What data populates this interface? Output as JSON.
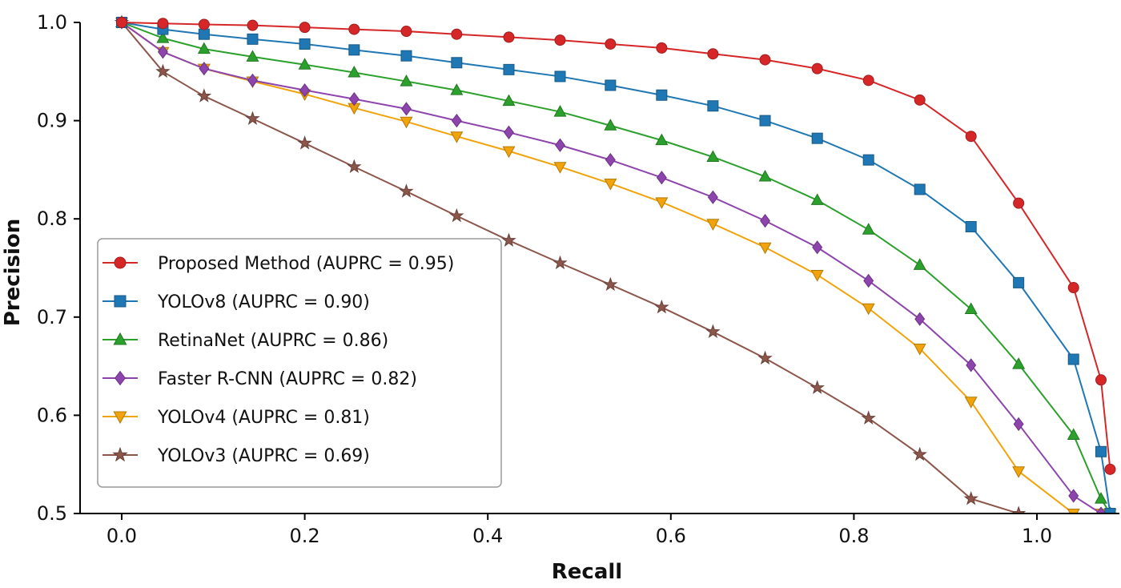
{
  "chart_data": {
    "type": "line",
    "title": "",
    "xlabel": "Recall",
    "ylabel": "Precision",
    "xlim": [
      -0.1,
      1.085
    ],
    "ylim": [
      0.5,
      1.0
    ],
    "xticks": [
      "0.0",
      "0.2",
      "0.4",
      "0.6",
      "0.8",
      "1.0"
    ],
    "xtick_values": [
      0.0,
      0.2,
      0.4,
      0.6,
      0.8,
      1.0
    ],
    "yticks": [
      "0.5",
      "0.6",
      "0.7",
      "0.8",
      "0.9",
      "1.0"
    ],
    "ytick_values": [
      0.5,
      0.6,
      0.7,
      0.8,
      0.9,
      1.0
    ],
    "grid": false,
    "legend_position": "lower-left",
    "series": [
      {
        "name": "Proposed Method (AUPRC = 0.95)",
        "color": "#d62728",
        "marker": "circle",
        "x": [
          0.0,
          0.045,
          0.09,
          0.143,
          0.2,
          0.254,
          0.311,
          0.366,
          0.423,
          0.479,
          0.534,
          0.59,
          0.646,
          0.703,
          0.76,
          0.816,
          0.872,
          0.928,
          0.98,
          1.04,
          1.07,
          1.08
        ],
        "y": [
          1.0,
          0.999,
          0.998,
          0.997,
          0.995,
          0.993,
          0.991,
          0.988,
          0.985,
          0.982,
          0.978,
          0.974,
          0.968,
          0.962,
          0.953,
          0.941,
          0.921,
          0.884,
          0.816,
          0.73,
          0.636,
          0.545
        ]
      },
      {
        "name": "YOLOv8 (AUPRC = 0.90)",
        "color": "#1f77b4",
        "marker": "square",
        "x": [
          0.0,
          0.045,
          0.09,
          0.143,
          0.2,
          0.254,
          0.311,
          0.366,
          0.423,
          0.479,
          0.534,
          0.59,
          0.646,
          0.703,
          0.76,
          0.816,
          0.872,
          0.928,
          0.98,
          1.04,
          1.07,
          1.08
        ],
        "y": [
          1.0,
          0.993,
          0.988,
          0.983,
          0.978,
          0.972,
          0.966,
          0.959,
          0.952,
          0.945,
          0.936,
          0.926,
          0.915,
          0.9,
          0.882,
          0.86,
          0.83,
          0.792,
          0.735,
          0.657,
          0.563,
          0.5
        ]
      },
      {
        "name": "RetinaNet (AUPRC = 0.86)",
        "color": "#2ca02c",
        "marker": "triangle-up",
        "x": [
          0.0,
          0.045,
          0.09,
          0.143,
          0.2,
          0.254,
          0.311,
          0.366,
          0.423,
          0.479,
          0.534,
          0.59,
          0.646,
          0.703,
          0.76,
          0.816,
          0.872,
          0.928,
          0.98,
          1.04,
          1.07,
          1.08
        ],
        "y": [
          1.0,
          0.984,
          0.973,
          0.965,
          0.957,
          0.949,
          0.94,
          0.931,
          0.92,
          0.909,
          0.895,
          0.88,
          0.863,
          0.843,
          0.819,
          0.789,
          0.753,
          0.708,
          0.652,
          0.58,
          0.515,
          0.5
        ]
      },
      {
        "name": "Faster R-CNN (AUPRC = 0.82)",
        "color": "#8e44ad",
        "marker": "diamond",
        "x": [
          0.0,
          0.045,
          0.09,
          0.143,
          0.2,
          0.254,
          0.311,
          0.366,
          0.423,
          0.479,
          0.534,
          0.59,
          0.646,
          0.703,
          0.76,
          0.816,
          0.872,
          0.928,
          0.98,
          1.04,
          1.07,
          1.08
        ],
        "y": [
          1.0,
          0.97,
          0.953,
          0.941,
          0.931,
          0.922,
          0.912,
          0.9,
          0.888,
          0.875,
          0.86,
          0.842,
          0.822,
          0.798,
          0.771,
          0.737,
          0.698,
          0.651,
          0.591,
          0.518,
          0.5,
          0.5
        ]
      },
      {
        "name": "YOLOv4 (AUPRC = 0.81)",
        "color": "#f0a30a",
        "marker": "triangle-down",
        "x": [
          0.0,
          0.045,
          0.09,
          0.143,
          0.2,
          0.254,
          0.311,
          0.366,
          0.423,
          0.479,
          0.534,
          0.59,
          0.646,
          0.703,
          0.76,
          0.816,
          0.872,
          0.928,
          0.98,
          1.04,
          1.07,
          1.08
        ],
        "y": [
          1.0,
          0.97,
          0.953,
          0.94,
          0.927,
          0.913,
          0.899,
          0.884,
          0.869,
          0.853,
          0.836,
          0.817,
          0.795,
          0.771,
          0.743,
          0.709,
          0.668,
          0.614,
          0.543,
          0.5,
          0.5,
          0.5
        ]
      },
      {
        "name": "YOLOv3 (AUPRC = 0.69)",
        "color": "#8c564b",
        "marker": "star",
        "x": [
          0.0,
          0.045,
          0.09,
          0.143,
          0.2,
          0.254,
          0.311,
          0.366,
          0.423,
          0.479,
          0.534,
          0.59,
          0.646,
          0.703,
          0.76,
          0.816,
          0.872,
          0.928,
          0.98
        ],
        "y": [
          1.0,
          0.95,
          0.925,
          0.902,
          0.877,
          0.853,
          0.828,
          0.803,
          0.778,
          0.755,
          0.733,
          0.71,
          0.685,
          0.658,
          0.628,
          0.597,
          0.56,
          0.515,
          0.5
        ]
      }
    ]
  }
}
